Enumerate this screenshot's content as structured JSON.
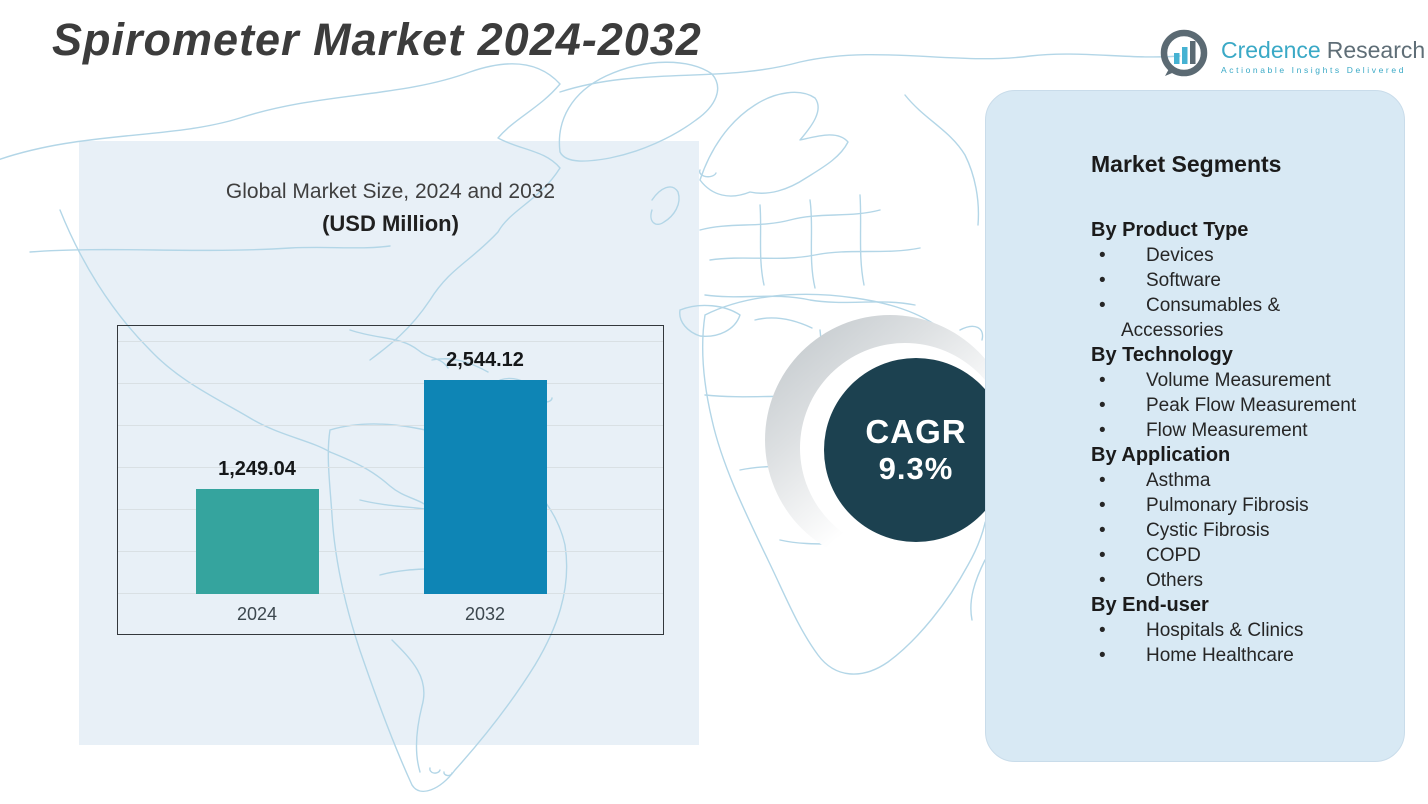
{
  "title": "Spirometer Market 2024-2032",
  "logo": {
    "brand_primary": "Credence",
    "brand_secondary": "Research",
    "tagline": "Actionable Insights Delivered"
  },
  "chart_data": {
    "type": "bar",
    "title": "Global Market Size, 2024 and 2032",
    "subtitle": "(USD Million)",
    "categories": [
      "2024",
      "2032"
    ],
    "values": [
      1249.04,
      2544.12
    ],
    "value_labels": [
      "1,249.04",
      "2,544.12"
    ],
    "bar_colors": [
      "#35a49e",
      "#0e85b5"
    ],
    "xlabel": "",
    "ylabel": "",
    "ylim": [
      0,
      3000
    ],
    "gridline_step": 500,
    "grid": true,
    "legend": "none"
  },
  "cagr": {
    "label": "CAGR",
    "value": "9.3%"
  },
  "segments": {
    "heading": "Market Segments",
    "groups": [
      {
        "label": "By Product Type",
        "items": [
          "Devices",
          "Software",
          "Consumables & Accessories"
        ]
      },
      {
        "label": "By Technology",
        "items": [
          "Volume Measurement",
          "Peak Flow Measurement",
          "Flow Measurement"
        ]
      },
      {
        "label": "By Application",
        "items": [
          "Asthma",
          "Pulmonary Fibrosis",
          "Cystic Fibrosis",
          "COPD",
          "Others"
        ]
      },
      {
        "label": "By End-user",
        "items": [
          "Hospitals & Clinics",
          "Home Healthcare"
        ]
      }
    ]
  },
  "colors": {
    "bar_2024": "#35a49e",
    "bar_2032": "#0e85b5",
    "cagr_circle": "#1c4150",
    "panel_bg": "#d8e9f4",
    "backdrop_bg": "#e8f0f7",
    "map_line": "#b3d6e7",
    "logo_teal": "#3aa9c6",
    "logo_gray": "#5f6e77",
    "title_text": "#3c3c3c"
  }
}
